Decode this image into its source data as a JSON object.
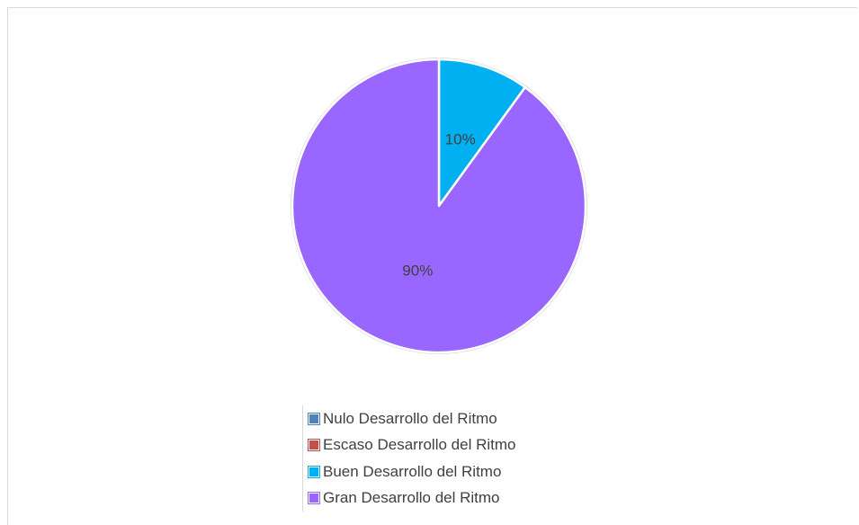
{
  "chart_data": {
    "type": "pie",
    "categories": [
      "Nulo Desarrollo del Ritmo",
      "Escaso Desarrollo del Ritmo",
      "Buen Desarrollo del Ritmo",
      "Gran Desarrollo del Ritmo"
    ],
    "values": [
      0,
      0,
      10,
      90
    ],
    "data_labels": [
      "",
      "",
      "10%",
      "90%"
    ],
    "colors": [
      "#4f81bd",
      "#c0504d",
      "#00b0f0",
      "#9966ff"
    ],
    "title": "",
    "legend_position": "bottom"
  },
  "legend": {
    "items": [
      {
        "label": "Nulo Desarrollo del Ritmo",
        "color": "#4f81bd"
      },
      {
        "label": "Escaso Desarrollo del Ritmo",
        "color": "#c0504d"
      },
      {
        "label": "Buen Desarrollo del Ritmo",
        "color": "#00b0f0"
      },
      {
        "label": "Gran Desarrollo del Ritmo",
        "color": "#9966ff"
      }
    ]
  }
}
